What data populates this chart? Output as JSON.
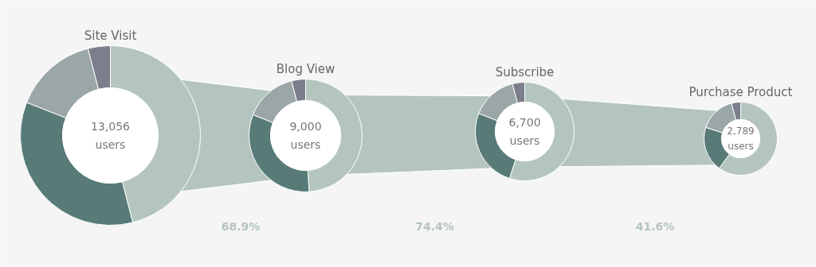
{
  "chart_data": [
    {
      "type": "donut",
      "title": "Site Visit",
      "categories": [
        null,
        null,
        null,
        null
      ],
      "values": [
        46,
        35,
        15,
        4
      ],
      "colors": [
        "#b4c5bf",
        "#587b78",
        "#9aa6a7",
        "#7b7f8c"
      ],
      "annotations": [
        "13,056 users"
      ]
    },
    {
      "type": "donut",
      "title": "Blog View",
      "categories": [
        null,
        null,
        null,
        null
      ],
      "values": [
        49,
        32,
        15,
        4
      ],
      "colors": [
        "#b4c5bf",
        "#587b78",
        "#9aa6a7",
        "#7b7f8c"
      ],
      "annotations": [
        "9,000 users"
      ]
    },
    {
      "type": "donut",
      "title": "Subscribe",
      "categories": [
        null,
        null,
        null,
        null
      ],
      "values": [
        55,
        26,
        15,
        4
      ],
      "colors": [
        "#b4c5bf",
        "#587b78",
        "#9aa6a7",
        "#7b7f8c"
      ],
      "annotations": [
        "6,700 users"
      ]
    },
    {
      "type": "donut",
      "title": "Purchase Product",
      "categories": [
        null,
        null,
        null,
        null
      ],
      "values": [
        60,
        20,
        16,
        4
      ],
      "colors": [
        "#b4c5bf",
        "#587b78",
        "#9aa6a7",
        "#7b7f8c"
      ],
      "annotations": [
        "2,789 users"
      ]
    },
    {
      "type": "other",
      "annotations": [
        "68.9%",
        "74.4%",
        "41.6%"
      ]
    }
  ]
}
